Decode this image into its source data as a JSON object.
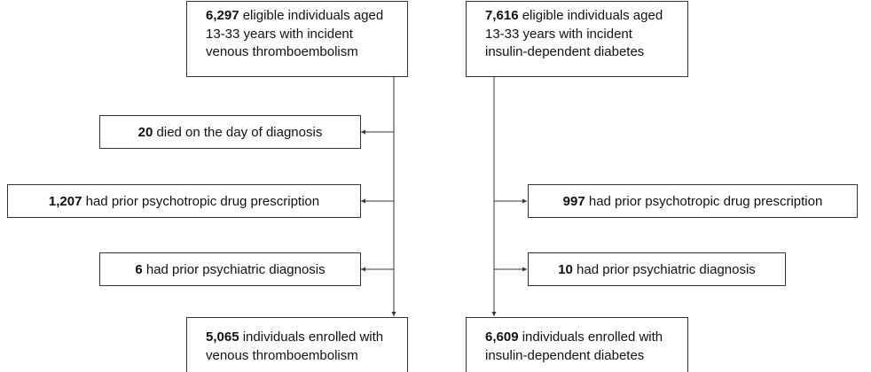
{
  "left": {
    "source": {
      "count": "6,297",
      "lines": [
        "eligible individuals aged",
        "13-33 years with incident",
        "venous thromboembolism"
      ]
    },
    "exclusions": [
      {
        "count": "20",
        "text": "died on the day of diagnosis"
      },
      {
        "count": "1,207",
        "text": "had prior psychotropic drug prescription"
      },
      {
        "count": "6",
        "text": "had prior psychiatric diagnosis"
      }
    ],
    "enrolled": {
      "count": "5,065",
      "lines": [
        "individuals enrolled with",
        "venous thromboembolism"
      ]
    }
  },
  "right": {
    "source": {
      "count": "7,616",
      "lines": [
        "eligible individuals aged",
        "13-33 years with incident",
        "insulin-dependent diabetes"
      ]
    },
    "exclusions": [
      {
        "count": "997",
        "text": "had prior psychotropic drug prescription"
      },
      {
        "count": "10",
        "text": "had prior psychiatric diagnosis"
      }
    ],
    "enrolled": {
      "count": "6,609",
      "lines": [
        "individuals enrolled with",
        "insulin-dependent diabetes"
      ]
    }
  }
}
